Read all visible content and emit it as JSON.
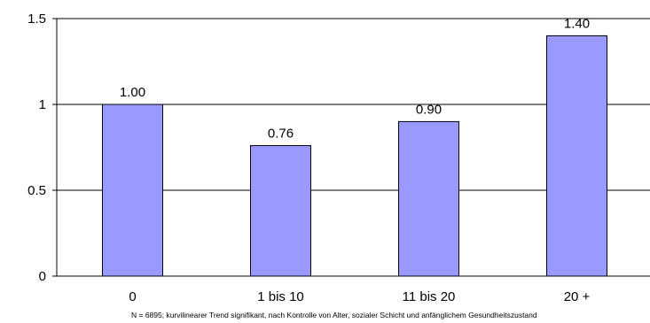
{
  "chart_data": {
    "type": "bar",
    "categories": [
      "0",
      "1 bis 10",
      "11 bis 20",
      "20 +"
    ],
    "values": [
      1.0,
      0.76,
      0.9,
      1.4
    ],
    "data_labels": [
      "1.00",
      "0.76",
      "0.90",
      "1.40"
    ],
    "y_ticks": [
      "0",
      "0.5",
      "1",
      "1.5"
    ],
    "y_tick_values": [
      0,
      0.5,
      1,
      1.5
    ],
    "ylim": [
      0,
      1.5
    ],
    "grid": true,
    "title": "",
    "xlabel": "",
    "ylabel": "",
    "colors": {
      "bar_fill": "#9999ff",
      "bar_stroke": "#000000",
      "grid": "#000000",
      "axis": "#000000"
    }
  },
  "footnote": "N = 6895; kurvilinearer Trend signifikant, nach Kontrolle von Alter, sozialer Schicht und anfänglichem Gesundheitszustand"
}
